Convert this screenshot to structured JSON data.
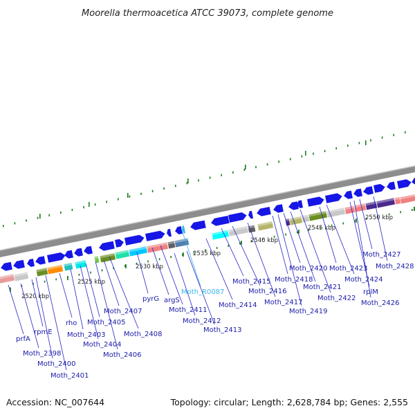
{
  "title": "Moorella thermoacetica ATCC 39073, complete genome",
  "footer": {
    "accession": "Accession: NC_007644",
    "summary": "Topology: circular; Length: 2,628,784 bp; Genes: 2,555"
  },
  "scale_labels": [
    "2520 kbp",
    "2525 kbp",
    "2530 kbp",
    "2535 kbp",
    "2540 kbp",
    "2545 kbp",
    "2550 kbp"
  ],
  "gene_labels": [
    {
      "name": "prfA",
      "type": "gene"
    },
    {
      "name": "Moth_2398",
      "type": "gene"
    },
    {
      "name": "rpmE",
      "type": "gene"
    },
    {
      "name": "Moth_2400",
      "type": "gene"
    },
    {
      "name": "Moth_2401",
      "type": "gene"
    },
    {
      "name": "rho",
      "type": "gene"
    },
    {
      "name": "Moth_2403",
      "type": "gene"
    },
    {
      "name": "Moth_2404",
      "type": "gene"
    },
    {
      "name": "Moth_2405",
      "type": "gene"
    },
    {
      "name": "Moth_2406",
      "type": "gene"
    },
    {
      "name": "Moth_2407",
      "type": "gene"
    },
    {
      "name": "Moth_2408",
      "type": "gene"
    },
    {
      "name": "pyrG",
      "type": "gene"
    },
    {
      "name": "argS",
      "type": "gene"
    },
    {
      "name": "Moth_2411",
      "type": "gene"
    },
    {
      "name": "Moth_R0087",
      "type": "rna"
    },
    {
      "name": "Moth_2412",
      "type": "gene"
    },
    {
      "name": "Moth_2413",
      "type": "gene"
    },
    {
      "name": "Moth_2414",
      "type": "gene"
    },
    {
      "name": "Moth_2415",
      "type": "gene"
    },
    {
      "name": "Moth_2416",
      "type": "gene"
    },
    {
      "name": "Moth_2417",
      "type": "gene"
    },
    {
      "name": "Moth_2418",
      "type": "gene"
    },
    {
      "name": "Moth_2419",
      "type": "gene"
    },
    {
      "name": "Moth_2420",
      "type": "gene"
    },
    {
      "name": "Moth_2421",
      "type": "gene"
    },
    {
      "name": "Moth_2422",
      "type": "gene"
    },
    {
      "name": "Moth_2423",
      "type": "gene"
    },
    {
      "name": "Moth_2424",
      "type": "gene"
    },
    {
      "name": "rplM",
      "type": "gene"
    },
    {
      "name": "Moth_2426",
      "type": "gene"
    },
    {
      "name": "Moth_2427",
      "type": "gene"
    },
    {
      "name": "Moth_2428",
      "type": "gene"
    }
  ],
  "colors": {
    "cds": "#1616e6",
    "rna": "#39b6e8",
    "tick": "#1f7a1f",
    "backbone": "#8a8a8a"
  }
}
